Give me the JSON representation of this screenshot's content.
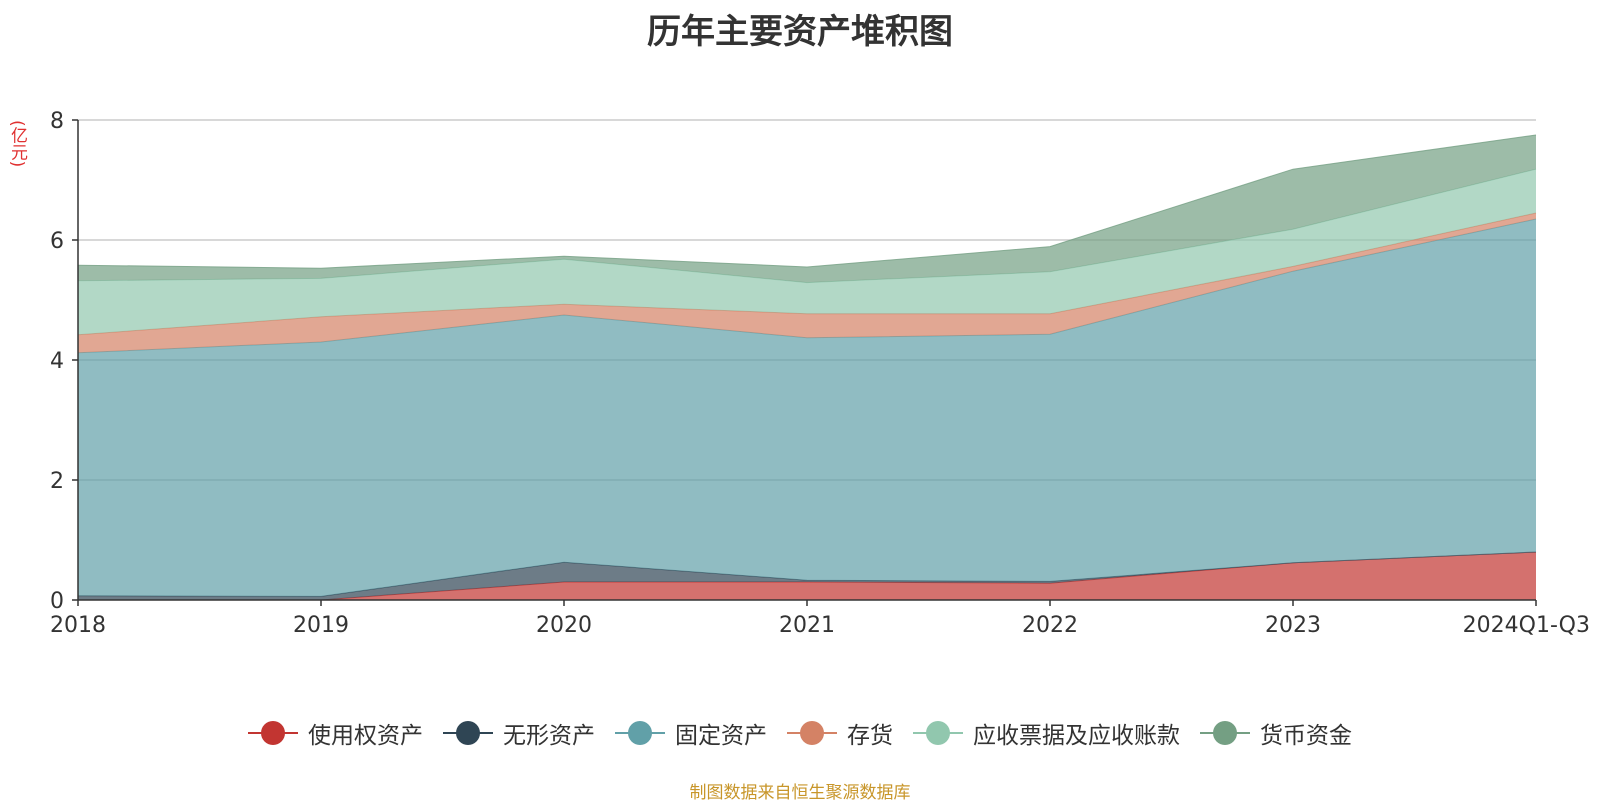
{
  "chart_data": {
    "type": "area",
    "stacked": true,
    "title": "历年主要资产堆积图",
    "y_unit": "(亿元)",
    "categories": [
      "2018",
      "2019",
      "2020",
      "2021",
      "2022",
      "2023",
      "2024Q1-Q3"
    ],
    "ylim": [
      0,
      8
    ],
    "yticks": [
      "0",
      "2",
      "4",
      "6",
      "8"
    ],
    "grid": true,
    "legend_position": "bottom",
    "series": [
      {
        "name": "使用权资产",
        "color": "#c23531",
        "values": [
          0.0,
          0.0,
          0.3,
          0.3,
          0.28,
          0.62,
          0.8
        ]
      },
      {
        "name": "无形资产",
        "color": "#2f4554",
        "values": [
          0.07,
          0.06,
          0.33,
          0.03,
          0.03,
          0.0,
          0.0
        ]
      },
      {
        "name": "固定资产",
        "color": "#61a0a8",
        "values": [
          4.05,
          4.24,
          4.12,
          4.04,
          4.12,
          4.86,
          5.55
        ]
      },
      {
        "name": "存货",
        "color": "#d48265",
        "values": [
          0.3,
          0.42,
          0.18,
          0.4,
          0.34,
          0.08,
          0.1
        ]
      },
      {
        "name": "应收票据及应收账款",
        "color": "#91c7ae",
        "values": [
          0.9,
          0.64,
          0.75,
          0.52,
          0.7,
          0.62,
          0.73
        ]
      },
      {
        "name": "货币资金",
        "color": "#749f83",
        "values": [
          0.26,
          0.17,
          0.05,
          0.26,
          0.42,
          1.0,
          0.57
        ]
      }
    ]
  },
  "legend_items": [
    {
      "label": "使用权资产",
      "color": "#c23531"
    },
    {
      "label": "无形资产",
      "color": "#2f4554"
    },
    {
      "label": "固定资产",
      "color": "#61a0a8"
    },
    {
      "label": "存货",
      "color": "#d48265"
    },
    {
      "label": "应收票据及应收账款",
      "color": "#91c7ae"
    },
    {
      "label": "货币资金",
      "color": "#749f83"
    }
  ],
  "source": "制图数据来自恒生聚源数据库"
}
